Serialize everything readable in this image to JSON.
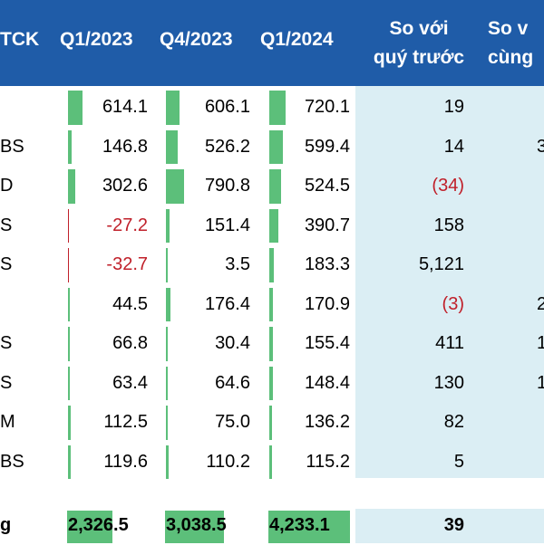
{
  "colors": {
    "header_bg": "#1f5ca8",
    "header_text": "#ffffff",
    "comparison_bg": "#dbeef4",
    "bar_fill": "#5cbf7a",
    "negative_text": "#c0202a"
  },
  "header": {
    "company_col": "TCK",
    "q1_2023": "Q1/2023",
    "q4_2023": "Q4/2023",
    "q1_2024": "Q1/2024",
    "vs_prev_quarter_line1": "So với",
    "vs_prev_quarter_line2": "quý trước",
    "vs_same_period_line1": "So v",
    "vs_same_period_line2": "cùng"
  },
  "rows": [
    {
      "name": "",
      "q1_2023": "614.1",
      "q4_2023": "606.1",
      "q1_2024": "720.1",
      "vs_prev": "19",
      "vs_same": "",
      "q1_2023_neg": false,
      "vs_prev_neg": false,
      "bar_q1_2023": 614.1,
      "bar_q4_2023": 606.1,
      "bar_q1_2024": 720.1
    },
    {
      "name": "BS",
      "q1_2023": "146.8",
      "q4_2023": "526.2",
      "q1_2024": "599.4",
      "vs_prev": "14",
      "vs_same": "3",
      "q1_2023_neg": false,
      "vs_prev_neg": false,
      "bar_q1_2023": 146.8,
      "bar_q4_2023": 526.2,
      "bar_q1_2024": 599.4
    },
    {
      "name": "D",
      "q1_2023": "302.6",
      "q4_2023": "790.8",
      "q1_2024": "524.5",
      "vs_prev": "(34)",
      "vs_same": "",
      "q1_2023_neg": false,
      "vs_prev_neg": true,
      "bar_q1_2023": 302.6,
      "bar_q4_2023": 790.8,
      "bar_q1_2024": 524.5
    },
    {
      "name": "S",
      "q1_2023": "-27.2",
      "q4_2023": "151.4",
      "q1_2024": "390.7",
      "vs_prev": "158",
      "vs_same": "",
      "q1_2023_neg": true,
      "vs_prev_neg": false,
      "bar_q1_2023": -27.2,
      "bar_q4_2023": 151.4,
      "bar_q1_2024": 390.7
    },
    {
      "name": "S",
      "q1_2023": "-32.7",
      "q4_2023": "3.5",
      "q1_2024": "183.3",
      "vs_prev": "5,121",
      "vs_same": "",
      "q1_2023_neg": true,
      "vs_prev_neg": false,
      "bar_q1_2023": -32.7,
      "bar_q4_2023": 3.5,
      "bar_q1_2024": 183.3
    },
    {
      "name": "",
      "q1_2023": "44.5",
      "q4_2023": "176.4",
      "q1_2024": "170.9",
      "vs_prev": "(3)",
      "vs_same": "2",
      "q1_2023_neg": false,
      "vs_prev_neg": true,
      "bar_q1_2023": 44.5,
      "bar_q4_2023": 176.4,
      "bar_q1_2024": 170.9
    },
    {
      "name": "S",
      "q1_2023": "66.8",
      "q4_2023": "30.4",
      "q1_2024": "155.4",
      "vs_prev": "411",
      "vs_same": "1",
      "q1_2023_neg": false,
      "vs_prev_neg": false,
      "bar_q1_2023": 66.8,
      "bar_q4_2023": 30.4,
      "bar_q1_2024": 155.4
    },
    {
      "name": "S",
      "q1_2023": "63.4",
      "q4_2023": "64.6",
      "q1_2024": "148.4",
      "vs_prev": "130",
      "vs_same": "1",
      "q1_2023_neg": false,
      "vs_prev_neg": false,
      "bar_q1_2023": 63.4,
      "bar_q4_2023": 64.6,
      "bar_q1_2024": 148.4
    },
    {
      "name": "M",
      "q1_2023": "112.5",
      "q4_2023": "75.0",
      "q1_2024": "136.2",
      "vs_prev": "82",
      "vs_same": "",
      "q1_2023_neg": false,
      "vs_prev_neg": false,
      "bar_q1_2023": 112.5,
      "bar_q4_2023": 75.0,
      "bar_q1_2024": 136.2
    },
    {
      "name": "BS",
      "q1_2023": "119.6",
      "q4_2023": "110.2",
      "q1_2024": "115.2",
      "vs_prev": "5",
      "vs_same": "",
      "q1_2023_neg": false,
      "vs_prev_neg": false,
      "bar_q1_2023": 119.6,
      "bar_q4_2023": 110.2,
      "bar_q1_2024": 115.2
    }
  ],
  "total": {
    "name": "g",
    "q1_2023": "2,326.5",
    "q4_2023": "3,038.5",
    "q1_2024": "4,233.1",
    "vs_prev": "39",
    "bar_q1_2023": 2326.5,
    "bar_q4_2023": 3038.5,
    "bar_q1_2024": 4233.1
  }
}
